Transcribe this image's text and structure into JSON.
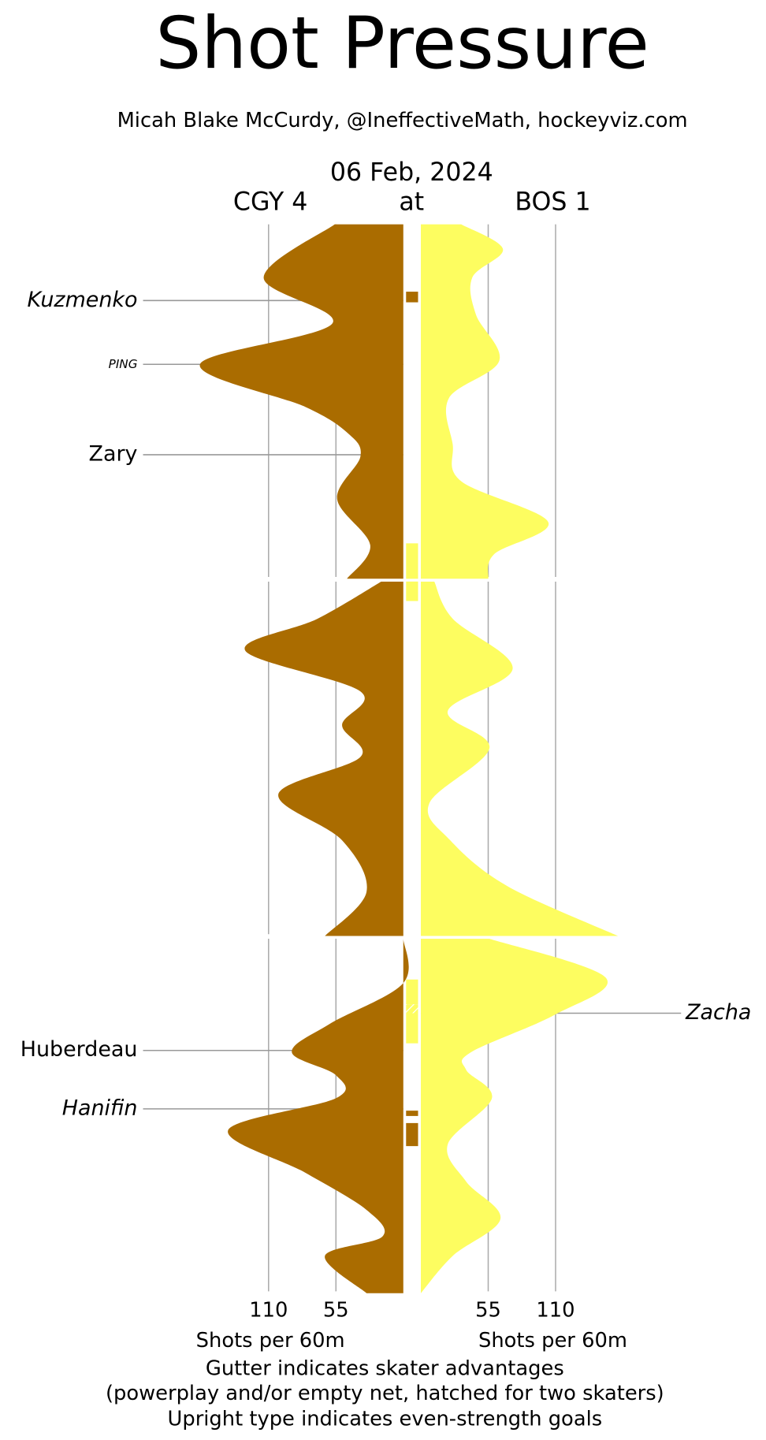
{
  "chart_data": {
    "type": "shot-pressure",
    "title": "Shot Pressure",
    "subtitle": "Micah Blake McCurdy, @IneffectiveMath, hockeyviz.com",
    "date": "06 Feb, 2024",
    "away_label": "CGY 4",
    "at_label": "at",
    "home_label": "BOS 1",
    "x_label": "Shots per 60m",
    "notes": [
      "Gutter indicates skater advantages",
      "(powerplay and/or empty net, hatched for two skaters)",
      "Upright type indicates even-strength goals"
    ],
    "xlim": [
      0,
      110
    ],
    "xticks": [
      110,
      55
    ],
    "tlim": [
      0,
      60
    ],
    "grid": true,
    "series": [
      {
        "name": "CGY 4",
        "side": "left",
        "color": "#aa6c00",
        "t": [
          0,
          3.0,
          5.6,
          7.9,
          10.3,
          11.8,
          13.1,
          15.5,
          18.1,
          20,
          null,
          20,
          22.1,
          23.9,
          26.2,
          28.1,
          29.9,
          32.0,
          34.6,
          37.5,
          40,
          null,
          40,
          42.5,
          44.8,
          46.4,
          47.7,
          49.0,
          50.8,
          53.2,
          55.3,
          56.8,
          57.9,
          60
        ],
        "values": [
          56,
          114,
          58,
          166,
          80,
          45,
          35,
          54,
          27,
          46,
          null,
          18,
          70,
          129,
          35,
          50,
          35,
          102,
          50,
          30,
          64,
          null,
          0,
          0,
          60,
          91,
          55,
          55,
          143,
          80,
          30,
          17,
          64,
          30
        ]
      },
      {
        "name": "BOS 1",
        "side": "right",
        "color": "#fdfd60",
        "t": [
          0,
          1.4,
          3.0,
          5.1,
          7.7,
          9.8,
          12.4,
          14.5,
          16.8,
          18.6,
          20,
          null,
          20,
          22.1,
          24.9,
          27.3,
          29.4,
          32.5,
          34.6,
          37.2,
          40,
          null,
          40,
          42.2,
          44.3,
          46.4,
          47.4,
          49.0,
          51.6,
          53.7,
          55.8,
          57.9,
          60
        ],
        "values": [
          33,
          67,
          42,
          45,
          64,
          23,
          26,
          33,
          104,
          60,
          55,
          null,
          11,
          26,
          75,
          22,
          56,
          7,
          24,
          71,
          161,
          null,
          56,
          151,
          109,
          41,
          37,
          58,
          22,
          37,
          65,
          26,
          0
        ]
      }
    ],
    "gutter": [
      {
        "team": "CGY 4",
        "start": 3.8,
        "end": 4.4
      },
      {
        "team": "BOS 1",
        "start": 18.0,
        "end": 21.1
      },
      {
        "team": "BOS 1",
        "start": 42.3,
        "end": 43.7
      },
      {
        "team": "BOS 1",
        "start": 43.7,
        "end": 44.2,
        "hatched": true
      },
      {
        "team": "BOS 1",
        "start": 44.2,
        "end": 45.9
      },
      {
        "team": "CGY 4",
        "start": 49.7,
        "end": 50.0
      },
      {
        "team": "CGY 4",
        "start": 50.4,
        "end": 51.7
      }
    ],
    "goals": [
      {
        "name": "Kuzmenko",
        "team": "CGY 4",
        "t": 4.3,
        "italic": true
      },
      {
        "name": "PING",
        "team": "CGY 4",
        "t": 7.9,
        "italic": true,
        "small": true
      },
      {
        "name": "Zary",
        "team": "CGY 4",
        "t": 13.0,
        "italic": false
      },
      {
        "name": "Zacha",
        "team": "BOS 1",
        "t": 44.2,
        "italic": true
      },
      {
        "name": "Huberdeau",
        "team": "CGY 4",
        "t": 46.3,
        "italic": false
      },
      {
        "name": "Hanifin",
        "team": "CGY 4",
        "t": 49.6,
        "italic": true
      }
    ]
  }
}
